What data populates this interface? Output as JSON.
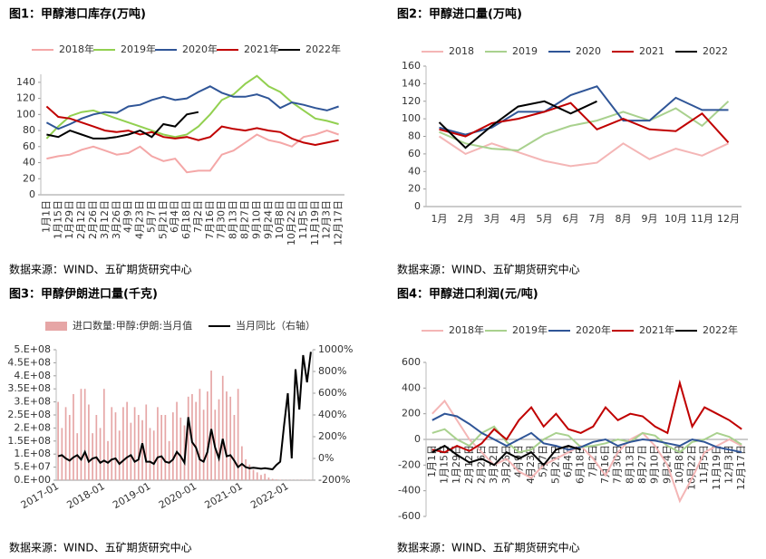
{
  "chart_data": [
    {
      "type": "line",
      "title": "图1：甲醇港口库存(万吨)",
      "source": "数据来源：WIND、五矿期货研究中心",
      "categories": [
        "1月1日",
        "1月15日",
        "1月29日",
        "2月12日",
        "2月26日",
        "3月12日",
        "3月26日",
        "4月9日",
        "4月23日",
        "5月7日",
        "5月21日",
        "6月4日",
        "6月18日",
        "7月2日",
        "7月16日",
        "7月30日",
        "8月13日",
        "8月27日",
        "9月10日",
        "9月24日",
        "10月8日",
        "10月22日",
        "11月5日",
        "11月19日",
        "12月3日",
        "12月17日"
      ],
      "ylim": [
        0,
        150
      ],
      "yticks": [
        0,
        20,
        40,
        60,
        80,
        100,
        120,
        140
      ],
      "series": [
        {
          "name": "2018年",
          "color": "#f4a7a7",
          "values": [
            45,
            48,
            50,
            56,
            60,
            55,
            50,
            52,
            60,
            48,
            42,
            45,
            28,
            30,
            30,
            50,
            55,
            65,
            75,
            68,
            65,
            60,
            72,
            75,
            80,
            75
          ]
        },
        {
          "name": "2019年",
          "color": "#92d050",
          "values": [
            70,
            85,
            98,
            103,
            105,
            100,
            95,
            90,
            85,
            80,
            75,
            72,
            75,
            85,
            100,
            118,
            125,
            138,
            148,
            135,
            128,
            115,
            105,
            95,
            92,
            88
          ]
        },
        {
          "name": "2020年",
          "color": "#2f5597",
          "values": [
            90,
            82,
            88,
            95,
            100,
            103,
            102,
            110,
            112,
            118,
            122,
            118,
            120,
            128,
            135,
            127,
            122,
            122,
            125,
            120,
            108,
            115,
            112,
            108,
            105,
            110
          ]
        },
        {
          "name": "2021年",
          "color": "#c00000",
          "values": [
            110,
            97,
            95,
            90,
            85,
            80,
            78,
            80,
            75,
            78,
            72,
            70,
            72,
            68,
            72,
            85,
            82,
            80,
            83,
            80,
            78,
            70,
            65,
            62,
            65,
            68
          ]
        },
        {
          "name": "2022年",
          "color": "#000000",
          "values": [
            75,
            72,
            80,
            75,
            70,
            70,
            72,
            75,
            80,
            72,
            88,
            85,
            100,
            103,
            null,
            null,
            null,
            null,
            null,
            null,
            null,
            null,
            null,
            null,
            null,
            null
          ]
        }
      ]
    },
    {
      "type": "line",
      "title": "图2：甲醇进口量(万吨)",
      "source": "数据来源：WIND、五矿期货研究中心",
      "categories": [
        "1月",
        "2月",
        "3月",
        "4月",
        "5月",
        "6月",
        "7月",
        "8月",
        "9月",
        "10月",
        "11月",
        "12月"
      ],
      "ylim": [
        0,
        160
      ],
      "yticks": [
        0,
        20,
        40,
        60,
        80,
        100,
        120,
        140,
        160
      ],
      "series": [
        {
          "name": "2018",
          "color": "#f4b6b6",
          "values": [
            80,
            60,
            72,
            62,
            52,
            46,
            50,
            72,
            54,
            66,
            58,
            72
          ]
        },
        {
          "name": "2019",
          "color": "#a9d18e",
          "values": [
            85,
            72,
            66,
            64,
            82,
            92,
            98,
            108,
            98,
            112,
            92,
            120
          ]
        },
        {
          "name": "2020",
          "color": "#2f5597",
          "values": [
            90,
            82,
            90,
            108,
            108,
            127,
            137,
            98,
            98,
            124,
            110,
            110
          ]
        },
        {
          "name": "2021",
          "color": "#c00000",
          "values": [
            88,
            80,
            95,
            100,
            108,
            118,
            88,
            100,
            88,
            86,
            106,
            73
          ]
        },
        {
          "name": "2022",
          "color": "#000000",
          "values": [
            96,
            67,
            92,
            114,
            120,
            106,
            120,
            null,
            null,
            null,
            null,
            null
          ]
        }
      ]
    },
    {
      "type": "bar",
      "title": "图3：甲醇伊朗进口量(千克)",
      "source": "数据来源：WIND、五矿期货研究中心",
      "categories": [
        "2017-01",
        null,
        null,
        null,
        null,
        null,
        null,
        null,
        null,
        null,
        null,
        null,
        "2018-01",
        null,
        null,
        null,
        null,
        null,
        null,
        null,
        null,
        null,
        null,
        null,
        "2019-01",
        null,
        null,
        null,
        null,
        null,
        null,
        null,
        null,
        null,
        null,
        null,
        "2020-01",
        null,
        null,
        null,
        null,
        null,
        null,
        null,
        null,
        null,
        null,
        null,
        "2021-01",
        null,
        null,
        null,
        null,
        null,
        null,
        null,
        null,
        null,
        null,
        null,
        "2022-01",
        null,
        null,
        null,
        null,
        null,
        null
      ],
      "ylim": [
        0,
        500000000
      ],
      "yticks": [
        {
          "value": 0,
          "label": "0.E+00"
        },
        {
          "value": 50000000,
          "label": "5.E+07"
        },
        {
          "value": 100000000,
          "label": "1.E+08"
        },
        {
          "value": 150000000,
          "label": "1.5E+08"
        },
        {
          "value": 200000000,
          "label": "2.E+08"
        },
        {
          "value": 250000000,
          "label": "2.5E+08"
        },
        {
          "value": 300000000,
          "label": "3.E+08"
        },
        {
          "value": 350000000,
          "label": "3.5E+08"
        },
        {
          "value": 400000000,
          "label": "4.E+08"
        },
        {
          "value": 450000000,
          "label": "4.5E+08"
        },
        {
          "value": 500000000,
          "label": "5.E+08"
        }
      ],
      "y2lim": [
        -200,
        1000
      ],
      "y2ticks": [
        {
          "value": -200,
          "label": "-200%"
        },
        {
          "value": 0,
          "label": "0%"
        },
        {
          "value": 200,
          "label": "200%"
        },
        {
          "value": 400,
          "label": "400%"
        },
        {
          "value": 600,
          "label": "600%"
        },
        {
          "value": 800,
          "label": "800%"
        },
        {
          "value": 1000,
          "label": "1000%"
        }
      ],
      "series": [
        {
          "name": "进口数量:甲醇:伊朗:当月值",
          "color": "#e6a6a6",
          "values": [
            300000000,
            200000000,
            280000000,
            250000000,
            330000000,
            180000000,
            350000000,
            350000000,
            290000000,
            180000000,
            250000000,
            200000000,
            350000000,
            150000000,
            280000000,
            260000000,
            190000000,
            280000000,
            300000000,
            220000000,
            280000000,
            250000000,
            230000000,
            290000000,
            200000000,
            190000000,
            280000000,
            250000000,
            250000000,
            150000000,
            260000000,
            300000000,
            240000000,
            210000000,
            320000000,
            330000000,
            300000000,
            350000000,
            270000000,
            340000000,
            420000000,
            270000000,
            310000000,
            400000000,
            340000000,
            320000000,
            250000000,
            350000000,
            130000000,
            80000000,
            60000000,
            40000000,
            30000000,
            20000000,
            25000000,
            10000000,
            5000000,
            3000000,
            2000000,
            1000000,
            1000000,
            1000000,
            1000000,
            1000000,
            1000000,
            1000000,
            1000000
          ]
        },
        {
          "name": "当月同比（右轴）",
          "color": "#000000",
          "axis": "y2",
          "values": [
            20,
            30,
            0,
            -20,
            10,
            30,
            -10,
            60,
            -30,
            0,
            10,
            -40,
            -20,
            -40,
            -10,
            0,
            -50,
            -20,
            10,
            30,
            -30,
            -10,
            140,
            -30,
            -30,
            -50,
            10,
            20,
            -30,
            -40,
            -10,
            60,
            20,
            -40,
            380,
            150,
            100,
            -10,
            -30,
            60,
            270,
            100,
            0,
            180,
            20,
            30,
            -20,
            -80,
            -50,
            -80,
            -90,
            -85,
            -90,
            -95,
            -90,
            -95,
            -100,
            -60,
            -30,
            300,
            600,
            0,
            820,
            450,
            950,
            700,
            980
          ]
        }
      ]
    },
    {
      "type": "line",
      "title": "图4：甲醇进口利润(元/吨)",
      "source": "数据来源：WIND、五矿期货研究中心",
      "categories": [
        "1月1日",
        "1月15日",
        "1月29日",
        "2月12日",
        "2月26日",
        "3月12日",
        "3月26日",
        "4月9日",
        "4月23日",
        "5月7日",
        "5月21日",
        "6月4日",
        "6月18日",
        "7月2日",
        "7月16日",
        "7月30日",
        "8月13日",
        "8月27日",
        "9月10日",
        "9月24日",
        "10月8日",
        "10月22日",
        "11月5日",
        "11月19日",
        "12月3日",
        "12月17日"
      ],
      "ylim": [
        -600,
        600
      ],
      "yticks": [
        -600,
        -400,
        -200,
        0,
        200,
        400,
        600
      ],
      "series": [
        {
          "name": "2018年",
          "color": "#f4b6b6",
          "values": [
            200,
            300,
            150,
            0,
            -100,
            -200,
            -150,
            -250,
            -300,
            -200,
            -150,
            -100,
            -50,
            -150,
            -280,
            -100,
            0,
            50,
            -50,
            -200,
            -480,
            -300,
            -100,
            -50,
            0,
            -50
          ]
        },
        {
          "name": "2019年",
          "color": "#a9d18e",
          "values": [
            50,
            80,
            0,
            -50,
            50,
            100,
            -20,
            -100,
            -80,
            0,
            50,
            30,
            -60,
            -50,
            -30,
            0,
            -20,
            50,
            30,
            -50,
            -100,
            -20,
            0,
            50,
            20,
            -40
          ]
        },
        {
          "name": "2020年",
          "color": "#2f5597",
          "values": [
            150,
            200,
            180,
            120,
            50,
            0,
            -50,
            0,
            50,
            -30,
            -50,
            -80,
            -60,
            -20,
            0,
            -50,
            -20,
            0,
            -10,
            -30,
            -50,
            0,
            -20,
            -60,
            -80,
            -100
          ]
        },
        {
          "name": "2021年",
          "color": "#c00000",
          "values": [
            -80,
            -100,
            -50,
            -90,
            -30,
            80,
            0,
            150,
            250,
            100,
            200,
            80,
            50,
            100,
            250,
            150,
            200,
            180,
            100,
            50,
            440,
            100,
            250,
            200,
            150,
            80
          ]
        },
        {
          "name": "2022年",
          "color": "#000000",
          "values": [
            -100,
            -50,
            -120,
            -180,
            -150,
            -200,
            -100,
            -150,
            -100,
            -200,
            -80,
            -50,
            -80,
            null,
            null,
            null,
            null,
            null,
            null,
            null,
            null,
            null,
            null,
            null,
            null,
            null
          ]
        }
      ]
    }
  ]
}
